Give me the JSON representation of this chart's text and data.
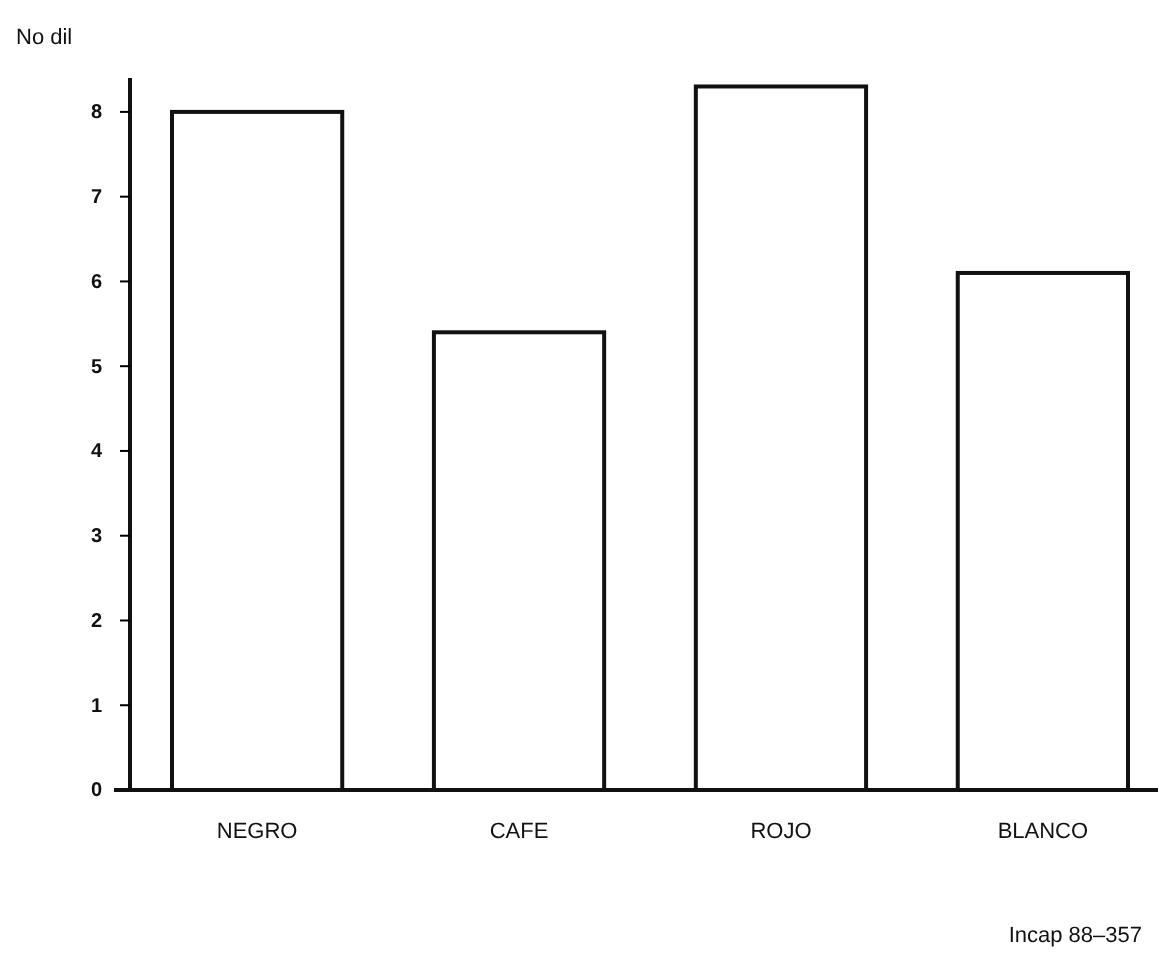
{
  "chart_data": {
    "type": "bar",
    "ylabel": "No dil",
    "categories": [
      "NEGRO",
      "CAFE",
      "ROJO",
      "BLANCO"
    ],
    "values": [
      8.0,
      5.4,
      8.3,
      6.1
    ],
    "color": "#ffffff",
    "ylim": [
      0,
      8.4
    ],
    "yticks": [
      0,
      1,
      2,
      3,
      4,
      5,
      6,
      7,
      8
    ],
    "grid": false,
    "annotations": [
      "Incap 88–357"
    ]
  }
}
